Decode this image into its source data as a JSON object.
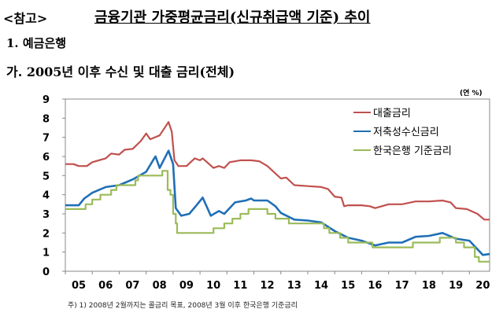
{
  "header": {
    "ref": "<참고>",
    "title": "금융기관 가중평균금리(신규취급액 기준) 추이",
    "section": "1. 예금은행",
    "subsection": "가. 2005년 이후 수신 및 대출 금리(전체)"
  },
  "chart_data": {
    "type": "line",
    "unit": "(연 %)",
    "ylim": [
      0,
      9
    ],
    "yticks": [
      "0",
      "1",
      "2",
      "3",
      "4",
      "5",
      "6",
      "7",
      "8",
      "9"
    ],
    "xlim": [
      2005,
      2020.75
    ],
    "xticks": [
      "05",
      "06",
      "07",
      "08",
      "09",
      "10",
      "11",
      "12",
      "13",
      "14",
      "15",
      "16",
      "17",
      "18",
      "19",
      "20"
    ],
    "legend_position": "top-right",
    "grid": false,
    "series": [
      {
        "name": "대출금리",
        "color": "#c0504d",
        "points": [
          [
            2005,
            5.6
          ],
          [
            2005.3,
            5.6
          ],
          [
            2005.5,
            5.5
          ],
          [
            2005.8,
            5.5
          ],
          [
            2006,
            5.7
          ],
          [
            2006.5,
            5.9
          ],
          [
            2006.7,
            6.15
          ],
          [
            2007,
            6.1
          ],
          [
            2007.2,
            6.35
          ],
          [
            2007.5,
            6.4
          ],
          [
            2007.8,
            6.8
          ],
          [
            2008,
            7.2
          ],
          [
            2008.15,
            6.9
          ],
          [
            2008.5,
            7.1
          ],
          [
            2008.83,
            7.8
          ],
          [
            2008.95,
            7.3
          ],
          [
            2009.05,
            5.8
          ],
          [
            2009.2,
            5.5
          ],
          [
            2009.5,
            5.5
          ],
          [
            2009.8,
            5.9
          ],
          [
            2010,
            5.8
          ],
          [
            2010.1,
            5.9
          ],
          [
            2010.5,
            5.4
          ],
          [
            2010.7,
            5.5
          ],
          [
            2010.9,
            5.4
          ],
          [
            2011.1,
            5.7
          ],
          [
            2011.5,
            5.8
          ],
          [
            2011.9,
            5.8
          ],
          [
            2012.2,
            5.75
          ],
          [
            2012.5,
            5.5
          ],
          [
            2013,
            4.85
          ],
          [
            2013.2,
            4.9
          ],
          [
            2013.5,
            4.5
          ],
          [
            2014,
            4.45
          ],
          [
            2014.5,
            4.4
          ],
          [
            2014.75,
            4.3
          ],
          [
            2015,
            3.9
          ],
          [
            2015.25,
            3.85
          ],
          [
            2015.35,
            3.4
          ],
          [
            2015.5,
            3.45
          ],
          [
            2016,
            3.45
          ],
          [
            2016.3,
            3.4
          ],
          [
            2016.5,
            3.3
          ],
          [
            2017,
            3.5
          ],
          [
            2017.5,
            3.5
          ],
          [
            2018,
            3.65
          ],
          [
            2018.5,
            3.65
          ],
          [
            2019,
            3.7
          ],
          [
            2019.3,
            3.6
          ],
          [
            2019.5,
            3.3
          ],
          [
            2019.9,
            3.25
          ],
          [
            2020.3,
            3.0
          ],
          [
            2020.55,
            2.7
          ],
          [
            2020.75,
            2.7
          ]
        ]
      },
      {
        "name": "저축성수신금리",
        "color": "#1f6fb5",
        "points": [
          [
            2005,
            3.45
          ],
          [
            2005.5,
            3.45
          ],
          [
            2005.7,
            3.8
          ],
          [
            2006,
            4.1
          ],
          [
            2006.5,
            4.4
          ],
          [
            2007,
            4.5
          ],
          [
            2007.5,
            4.8
          ],
          [
            2008,
            5.2
          ],
          [
            2008.3,
            5.9
          ],
          [
            2008.35,
            6.0
          ],
          [
            2008.5,
            5.4
          ],
          [
            2008.83,
            6.3
          ],
          [
            2009.0,
            5.6
          ],
          [
            2009.1,
            3.3
          ],
          [
            2009.3,
            2.9
          ],
          [
            2009.6,
            3.0
          ],
          [
            2009.9,
            3.5
          ],
          [
            2010.1,
            3.85
          ],
          [
            2010.4,
            2.9
          ],
          [
            2010.7,
            3.15
          ],
          [
            2010.9,
            3.0
          ],
          [
            2011.3,
            3.6
          ],
          [
            2011.7,
            3.7
          ],
          [
            2011.9,
            3.8
          ],
          [
            2012,
            3.7
          ],
          [
            2012.5,
            3.7
          ],
          [
            2012.8,
            3.4
          ],
          [
            2013,
            3.05
          ],
          [
            2013.5,
            2.7
          ],
          [
            2014,
            2.65
          ],
          [
            2014.5,
            2.55
          ],
          [
            2015,
            2.1
          ],
          [
            2015.5,
            1.75
          ],
          [
            2016,
            1.6
          ],
          [
            2016.5,
            1.35
          ],
          [
            2017,
            1.5
          ],
          [
            2017.5,
            1.5
          ],
          [
            2018,
            1.8
          ],
          [
            2018.5,
            1.85
          ],
          [
            2019,
            2.0
          ],
          [
            2019.5,
            1.7
          ],
          [
            2020,
            1.6
          ],
          [
            2020.5,
            0.85
          ],
          [
            2020.75,
            0.9
          ]
        ]
      },
      {
        "name": "한국은행 기준금리",
        "color": "#9bbb59",
        "step": true,
        "points": [
          [
            2005,
            3.25
          ],
          [
            2005.75,
            3.5
          ],
          [
            2006,
            3.75
          ],
          [
            2006.3,
            4.0
          ],
          [
            2006.7,
            4.25
          ],
          [
            2006.9,
            4.5
          ],
          [
            2007.6,
            4.75
          ],
          [
            2007.7,
            5.0
          ],
          [
            2008.6,
            5.25
          ],
          [
            2008.8,
            4.25
          ],
          [
            2008.9,
            4.0
          ],
          [
            2009.0,
            3.0
          ],
          [
            2009.1,
            2.5
          ],
          [
            2009.15,
            2.0
          ],
          [
            2010.5,
            2.25
          ],
          [
            2010.9,
            2.5
          ],
          [
            2011.2,
            2.75
          ],
          [
            2011.5,
            3.0
          ],
          [
            2011.8,
            3.25
          ],
          [
            2012.5,
            3.0
          ],
          [
            2012.8,
            2.75
          ],
          [
            2013.3,
            2.5
          ],
          [
            2014.6,
            2.25
          ],
          [
            2014.8,
            2.0
          ],
          [
            2015.2,
            1.75
          ],
          [
            2015.5,
            1.5
          ],
          [
            2016.4,
            1.25
          ],
          [
            2017.9,
            1.5
          ],
          [
            2018.9,
            1.75
          ],
          [
            2019.5,
            1.5
          ],
          [
            2019.8,
            1.25
          ],
          [
            2020.2,
            0.75
          ],
          [
            2020.35,
            0.5
          ],
          [
            2020.75,
            0.5
          ]
        ]
      }
    ]
  },
  "footnote": "주) 1) 2008년 2월까지는 콜금리 목표, 2008년 3월 이후 한국은행 기준금리"
}
